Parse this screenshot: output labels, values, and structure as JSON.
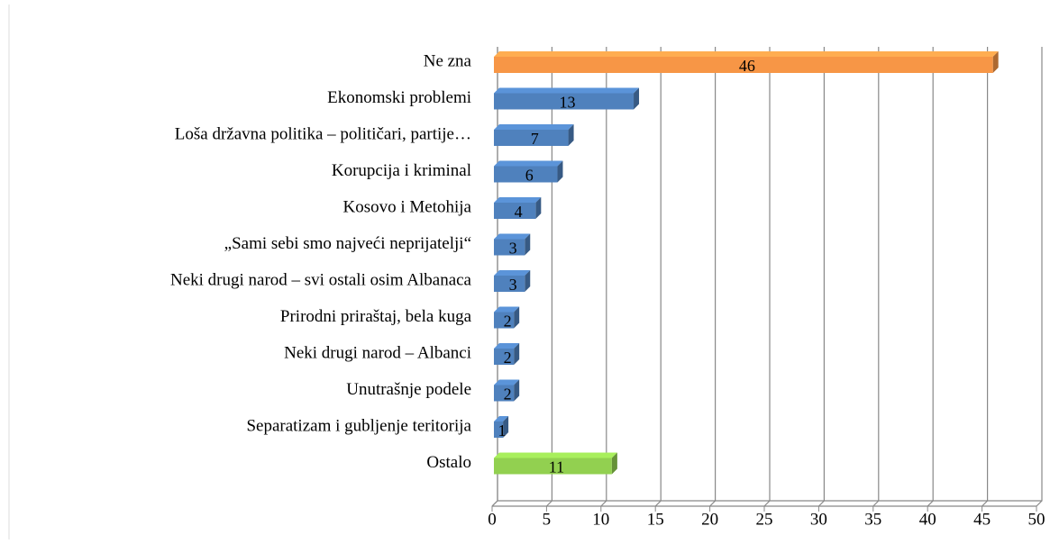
{
  "chart_data": {
    "type": "bar",
    "orientation": "horizontal",
    "categories": [
      "Ne zna",
      "Ekonomski problemi",
      "Loša državna politika – političari, partije…",
      "Korupcija i kriminal",
      "Kosovo i Metohija",
      "„Sami sebi smo najveći neprijatelji“",
      "Neki drugi narod – svi ostali osim Albanaca",
      "Prirodni priraštaj, bela kuga",
      "Neki drugi narod – Albanci",
      "Unutrašnje podele",
      "Separatizam i gubljenje teritorija",
      "Ostalo"
    ],
    "values": [
      46,
      13,
      7,
      6,
      4,
      3,
      3,
      2,
      2,
      2,
      1,
      11
    ],
    "colors": [
      "#f79646",
      "#4f81bd",
      "#4f81bd",
      "#4f81bd",
      "#4f81bd",
      "#4f81bd",
      "#4f81bd",
      "#4f81bd",
      "#4f81bd",
      "#4f81bd",
      "#4f81bd",
      "#92d050"
    ],
    "xlim": [
      0,
      50
    ],
    "xticks": [
      0,
      5,
      10,
      15,
      20,
      25,
      30,
      35,
      40,
      45,
      50
    ],
    "grid": true
  }
}
